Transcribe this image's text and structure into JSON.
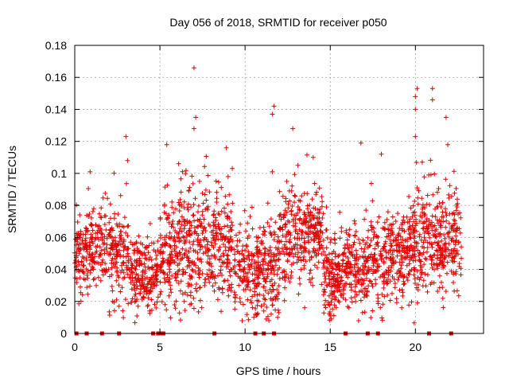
{
  "chart_data": {
    "type": "scatter",
    "title": "Day 056 of 2018, SRMTID for receiver p050",
    "xlabel": "GPS time / hours",
    "ylabel": "SRMTID / TECUs",
    "xlim": [
      0,
      24
    ],
    "ylim": [
      0,
      0.18
    ],
    "grid": true,
    "marker": "+",
    "color": "#e00000",
    "x_ticks": [
      0,
      5,
      10,
      15,
      20
    ],
    "x_tick_labels": [
      "0",
      "5",
      "10",
      "15",
      "20"
    ],
    "y_ticks": [
      0,
      0.02,
      0.04,
      0.06,
      0.08,
      0.1,
      0.12,
      0.14,
      0.16,
      0.18
    ],
    "y_tick_labels": [
      "0",
      "0.02",
      "0.04",
      "0.06",
      "0.08",
      "0.1",
      "0.12",
      "0.14",
      "0.16",
      "0.18"
    ],
    "zero_markers_x": [
      0.1,
      0.7,
      1.6,
      2.6,
      4.6,
      4.9,
      5.0,
      5.1,
      5.2,
      8.2,
      10.6,
      11.1,
      11.7,
      15.9,
      17.2,
      17.8,
      20.8,
      22.1
    ],
    "segments": [
      {
        "start": 0.0,
        "end": 1.7,
        "mean": 0.052,
        "spread": 0.014,
        "n": 190
      },
      {
        "start": 1.7,
        "end": 3.2,
        "mean": 0.05,
        "spread": 0.015,
        "n": 160
      },
      {
        "start": 3.2,
        "end": 4.9,
        "mean": 0.036,
        "spread": 0.011,
        "n": 200
      },
      {
        "start": 5.0,
        "end": 6.2,
        "mean": 0.048,
        "spread": 0.016,
        "n": 150
      },
      {
        "start": 6.2,
        "end": 7.8,
        "mean": 0.058,
        "spread": 0.021,
        "n": 190
      },
      {
        "start": 7.8,
        "end": 9.3,
        "mean": 0.056,
        "spread": 0.018,
        "n": 170
      },
      {
        "start": 9.3,
        "end": 11.2,
        "mean": 0.042,
        "spread": 0.014,
        "n": 200
      },
      {
        "start": 11.2,
        "end": 12.0,
        "mean": 0.04,
        "spread": 0.017,
        "n": 90
      },
      {
        "start": 12.0,
        "end": 13.5,
        "mean": 0.06,
        "spread": 0.014,
        "n": 170
      },
      {
        "start": 13.5,
        "end": 14.6,
        "mean": 0.062,
        "spread": 0.015,
        "n": 130
      },
      {
        "start": 14.6,
        "end": 15.6,
        "mean": 0.036,
        "spread": 0.012,
        "n": 140
      },
      {
        "start": 15.6,
        "end": 17.0,
        "mean": 0.042,
        "spread": 0.013,
        "n": 150
      },
      {
        "start": 17.0,
        "end": 18.2,
        "mean": 0.046,
        "spread": 0.015,
        "n": 130
      },
      {
        "start": 18.2,
        "end": 19.6,
        "mean": 0.05,
        "spread": 0.013,
        "n": 160
      },
      {
        "start": 19.6,
        "end": 21.2,
        "mean": 0.058,
        "spread": 0.018,
        "n": 190
      },
      {
        "start": 21.2,
        "end": 22.7,
        "mean": 0.06,
        "spread": 0.016,
        "n": 180
      }
    ],
    "outliers": [
      {
        "x": 7.0,
        "y": 0.166
      },
      {
        "x": 20.1,
        "y": 0.153
      },
      {
        "x": 21.0,
        "y": 0.153
      },
      {
        "x": 20.0,
        "y": 0.148
      },
      {
        "x": 21.0,
        "y": 0.146
      },
      {
        "x": 11.7,
        "y": 0.142
      },
      {
        "x": 11.6,
        "y": 0.137
      },
      {
        "x": 20.0,
        "y": 0.14
      },
      {
        "x": 21.8,
        "y": 0.135
      },
      {
        "x": 7.1,
        "y": 0.135
      },
      {
        "x": 7.0,
        "y": 0.128
      },
      {
        "x": 12.8,
        "y": 0.128
      },
      {
        "x": 3.0,
        "y": 0.123
      },
      {
        "x": 16.8,
        "y": 0.119
      },
      {
        "x": 5.4,
        "y": 0.118
      },
      {
        "x": 20.0,
        "y": 0.123
      },
      {
        "x": 21.9,
        "y": 0.118
      },
      {
        "x": 8.9,
        "y": 0.116
      },
      {
        "x": 18.0,
        "y": 0.112
      },
      {
        "x": 14.0,
        "y": 0.11
      },
      {
        "x": 3.1,
        "y": 0.108
      },
      {
        "x": 0.9,
        "y": 0.101
      },
      {
        "x": 11.6,
        "y": 0.101
      },
      {
        "x": 13.1,
        "y": 0.105
      },
      {
        "x": 20.4,
        "y": 0.107
      },
      {
        "x": 6.1,
        "y": 0.106
      },
      {
        "x": 9.0,
        "y": 0.098
      },
      {
        "x": 11.4,
        "y": 0.008
      },
      {
        "x": 15.0,
        "y": 0.011
      },
      {
        "x": 10.6,
        "y": 0.012
      },
      {
        "x": 11.1,
        "y": 0.014
      },
      {
        "x": 4.4,
        "y": 0.014
      },
      {
        "x": 19.2,
        "y": 0.016
      },
      {
        "x": 13.5,
        "y": 0.016
      },
      {
        "x": 2.6,
        "y": 0.017
      },
      {
        "x": 16.1,
        "y": 0.016
      },
      {
        "x": 5.3,
        "y": 0.018
      },
      {
        "x": 17.8,
        "y": 0.02
      }
    ]
  }
}
